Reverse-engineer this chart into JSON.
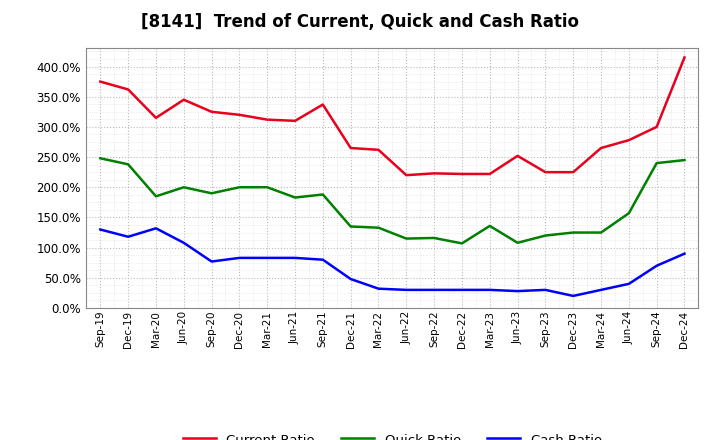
{
  "title": "[8141]  Trend of Current, Quick and Cash Ratio",
  "x_labels": [
    "Sep-19",
    "Dec-19",
    "Mar-20",
    "Jun-20",
    "Sep-20",
    "Dec-20",
    "Mar-21",
    "Jun-21",
    "Sep-21",
    "Dec-21",
    "Mar-22",
    "Jun-22",
    "Sep-22",
    "Dec-22",
    "Mar-23",
    "Jun-23",
    "Sep-23",
    "Dec-23",
    "Mar-24",
    "Jun-24",
    "Sep-24",
    "Dec-24"
  ],
  "current_ratio": [
    375,
    362,
    315,
    345,
    325,
    320,
    312,
    310,
    337,
    265,
    262,
    220,
    223,
    222,
    222,
    252,
    225,
    225,
    265,
    278,
    300,
    415
  ],
  "quick_ratio": [
    248,
    238,
    185,
    200,
    190,
    200,
    200,
    183,
    188,
    135,
    133,
    115,
    116,
    107,
    136,
    108,
    120,
    125,
    125,
    157,
    240,
    245
  ],
  "cash_ratio": [
    130,
    118,
    132,
    108,
    77,
    83,
    83,
    83,
    80,
    48,
    32,
    30,
    30,
    30,
    30,
    28,
    30,
    20,
    30,
    40,
    70,
    90
  ],
  "current_color": "#e8001c",
  "quick_color": "#008000",
  "cash_color": "#0000ff",
  "ylim": [
    0,
    430
  ],
  "yticks": [
    0,
    50,
    100,
    150,
    200,
    250,
    300,
    350,
    400
  ],
  "background_color": "#ffffff",
  "grid_color": "#bbbbbb",
  "minor_grid_color": "#dddddd"
}
